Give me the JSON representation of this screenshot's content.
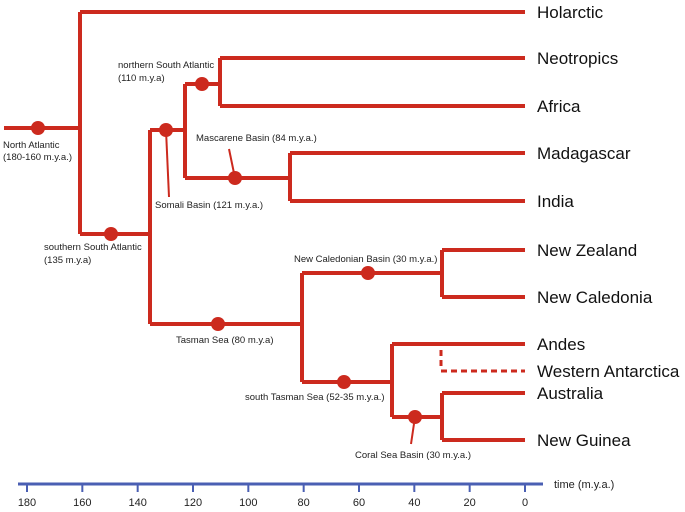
{
  "colors": {
    "branch": "#cc2a1e",
    "axis": "#4a5fb3",
    "text": "#111111"
  },
  "leaves": {
    "holarctic": "Holarctic",
    "neotropics": "Neotropics",
    "africa": "Africa",
    "madagascar": "Madagascar",
    "india": "India",
    "new_zealand": "New Zealand",
    "new_caledonia": "New Caledonia",
    "andes": "Andes",
    "western_antarctica": "Western Antarctica",
    "australia": "Australia",
    "new_guinea": "New Guinea"
  },
  "events": {
    "north_atlantic": [
      "North Atlantic",
      "(180-160 m.y.a.)"
    ],
    "northern_south_atlantic": [
      "northern South Atlantic",
      "(110 m.y.a)"
    ],
    "mascarene": "Mascarene Basin (84 m.y.a.)",
    "somali": "Somali Basin (121 m.y.a.)",
    "southern_south_atlantic": [
      "southern South Atlantic",
      "(135 m.y.a)"
    ],
    "new_caledonian": "New Caledonian Basin (30 m.y.a.)",
    "tasman": "Tasman Sea (80 m.y.a)",
    "south_tasman": "south Tasman Sea (52-35 m.y.a.)",
    "coral_sea": "Coral Sea Basin (30 m.y.a.)"
  },
  "axis": {
    "title": "time (m.y.a.)",
    "ticks": [
      180,
      160,
      140,
      120,
      100,
      80,
      60,
      40,
      20,
      0
    ]
  }
}
